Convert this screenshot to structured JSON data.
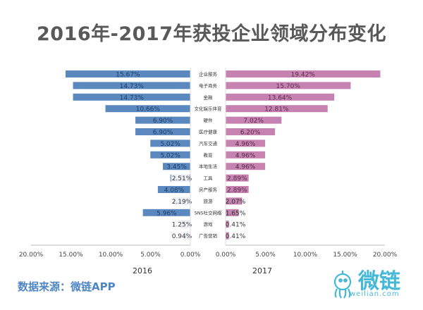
{
  "title": "2016年-2017年获投企业领域分布变化",
  "source": "数据来源：微链APP",
  "logo": {
    "text": "微链",
    "url": "weilian.com"
  },
  "colors": {
    "left": "#5b88bf",
    "right": "#c682b0",
    "label_bg": "#ffffff"
  },
  "chart_data": {
    "type": "bar",
    "orientation": "horizontal-butterfly",
    "categories": [
      "企业服务",
      "电子商务",
      "金融",
      "文化娱乐体育",
      "硬件",
      "医疗健康",
      "汽车交通",
      "教育",
      "本地生活",
      "工具",
      "房产服务",
      "旅游",
      "SNS社交网络",
      "游戏",
      "广告营销"
    ],
    "series": [
      {
        "name": "2016",
        "values": [
          15.67,
          14.73,
          14.73,
          10.66,
          6.9,
          6.9,
          5.02,
          5.02,
          3.45,
          2.51,
          4.08,
          2.19,
          5.96,
          1.25,
          0.94
        ],
        "labels": [
          "15.67%",
          "14.73%",
          "14.73%",
          "10.66%",
          "6.90%",
          "6.90%",
          "5.02%",
          "5.02%",
          "3.45%",
          "2.51%",
          "4.08%",
          "2.19%",
          "5.96%",
          "1.25%",
          "0.94%"
        ]
      },
      {
        "name": "2017",
        "values": [
          19.42,
          15.7,
          13.64,
          12.81,
          7.02,
          6.2,
          4.96,
          4.96,
          4.96,
          2.89,
          2.89,
          2.07,
          1.65,
          0.41,
          0.41
        ],
        "labels": [
          "19.42%",
          "15.70%",
          "13.64%",
          "12.81%",
          "7.02%",
          "6.20%",
          "4.96%",
          "4.96%",
          "4.96%",
          "2.89%",
          "2.89%",
          "2.07%",
          "1.65%",
          "0.41%",
          "0.41%"
        ]
      }
    ],
    "left_axis": {
      "ticks": [
        20,
        15,
        10,
        5,
        0
      ],
      "tick_labels": [
        "20.00%",
        "15.00%",
        "10.00%",
        "5.00%",
        "0.00%"
      ],
      "xlim": [
        0,
        20
      ]
    },
    "right_axis": {
      "ticks": [
        0,
        5,
        10,
        15,
        20
      ],
      "tick_labels": [
        "0.00%",
        "5.00%",
        "10.00%",
        "15.00%",
        "20.00%"
      ],
      "xlim": [
        0,
        20
      ]
    },
    "grid": false,
    "legend": "none"
  }
}
